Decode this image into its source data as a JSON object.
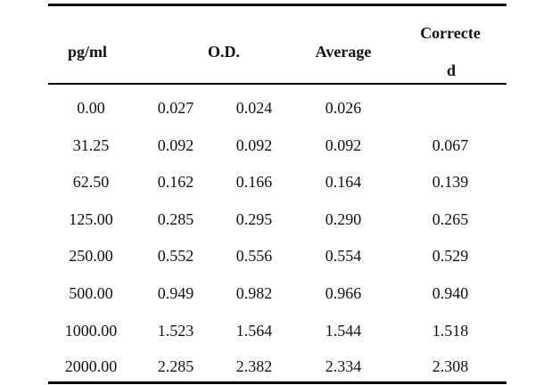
{
  "table": {
    "headers": {
      "pg_ml": "pg/ml",
      "od": "O.D.",
      "average": "Average",
      "corrected_line1": "Correcte",
      "corrected_line2": "d"
    },
    "rows": [
      [
        "0.00",
        "0.027",
        "0.024",
        "0.026",
        ""
      ],
      [
        "31.25",
        "0.092",
        "0.092",
        "0.092",
        "0.067"
      ],
      [
        "62.50",
        "0.162",
        "0.166",
        "0.164",
        "0.139"
      ],
      [
        "125.00",
        "0.285",
        "0.295",
        "0.290",
        "0.265"
      ],
      [
        "250.00",
        "0.552",
        "0.556",
        "0.554",
        "0.529"
      ],
      [
        "500.00",
        "0.949",
        "0.982",
        "0.966",
        "0.940"
      ],
      [
        "1000.00",
        "1.523",
        "1.564",
        "1.544",
        "1.518"
      ],
      [
        "2000.00",
        "2.285",
        "2.382",
        "2.334",
        "2.308"
      ]
    ]
  }
}
